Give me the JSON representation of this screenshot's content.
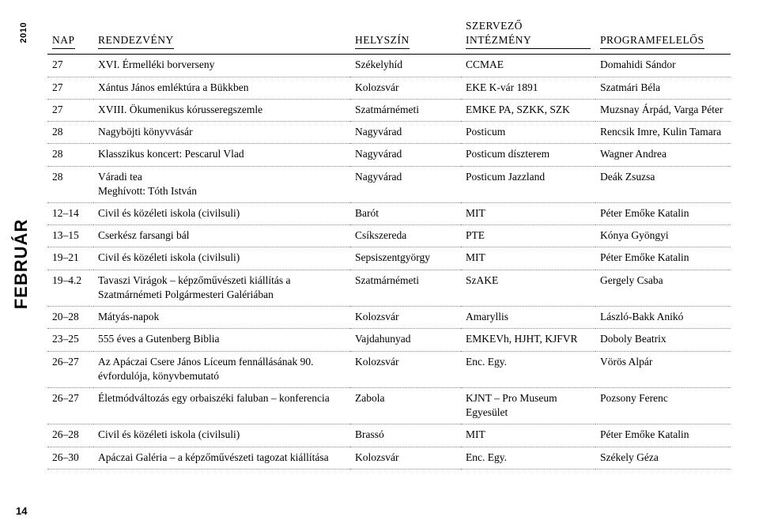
{
  "sidebar": {
    "month": "FEBRUÁR",
    "year": "2010"
  },
  "page_number": "14",
  "table": {
    "headers": {
      "nap": "NAP",
      "rendezveny": "RENDEZVÉNY",
      "helyszin": "HELYSZÍN",
      "szervezo": "SZERVEZŐ INTÉZMÉNY",
      "program": "PROGRAMFELELŐS"
    },
    "rows": [
      {
        "nap": "27",
        "rend": "XVI. Érmelléki borverseny",
        "hely": "Székelyhíd",
        "szerv": "CCMAE",
        "prog": "Domahidi Sándor"
      },
      {
        "nap": "27",
        "rend": "Xántus János emléktúra a Bükkben",
        "hely": "Kolozsvár",
        "szerv": "EKE K-vár 1891",
        "prog": "Szatmári Béla"
      },
      {
        "nap": "27",
        "rend": "XVIII. Ökumenikus kórusseregszemle",
        "hely": "Szatmárnémeti",
        "szerv": "EMKE PA, SZKK, SZK",
        "prog": "Muzsnay Árpád, Varga Péter"
      },
      {
        "nap": "28",
        "rend": "Nagyböjti könyvvásár",
        "hely": "Nagyvárad",
        "szerv": "Posticum",
        "prog": "Rencsik Imre, Kulin Tamara"
      },
      {
        "nap": "28",
        "rend": "Klasszikus koncert: Pescarul Vlad",
        "hely": "Nagyvárad",
        "szerv": "Posticum díszterem",
        "prog": "Wagner Andrea"
      },
      {
        "nap": "28",
        "rend": "Váradi tea\nMeghívott: Tóth István",
        "hely": "Nagyvárad",
        "szerv": "Posticum Jazzland",
        "prog": "Deák Zsuzsa"
      },
      {
        "nap": "12–14",
        "rend": "Civil és közéleti iskola (civilsuli)",
        "hely": "Barót",
        "szerv": "MIT",
        "prog": "Péter Emőke Katalin"
      },
      {
        "nap": "13–15",
        "rend": "Cserkész farsangi bál",
        "hely": "Csíkszereda",
        "szerv": "PTE",
        "prog": "Kónya Gyöngyi"
      },
      {
        "nap": "19–21",
        "rend": "Civil és közéleti iskola (civilsuli)",
        "hely": "Sepsiszentgyörgy",
        "szerv": "MIT",
        "prog": "Péter Emőke Katalin"
      },
      {
        "nap": "19–4.2",
        "rend": "Tavaszi Virágok – képzőművészeti kiállítás a Szatmárnémeti Polgármesteri Galériában",
        "hely": "Szatmárnémeti",
        "szerv": "SzAKE",
        "prog": "Gergely Csaba"
      },
      {
        "nap": "20–28",
        "rend": "Mátyás-napok",
        "hely": "Kolozsvár",
        "szerv": "Amaryllis",
        "prog": "László-Bakk Anikó"
      },
      {
        "nap": "23–25",
        "rend": "555 éves a Gutenberg Biblia",
        "hely": "Vajdahunyad",
        "szerv": "EMKEVh, HJHT, KJFVR",
        "prog": "Doboly Beatrix"
      },
      {
        "nap": "26–27",
        "rend": "Az Apáczai Csere János Líceum fennállásának 90. évfordulója, könyvbemutató",
        "hely": "Kolozsvár",
        "szerv": "Enc. Egy.",
        "prog": "Vörös Alpár"
      },
      {
        "nap": "26–27",
        "rend": "Életmódváltozás egy orbaiszéki faluban – konferencia",
        "hely": "Zabola",
        "szerv": "KJNT – Pro Museum Egyesület",
        "prog": "Pozsony Ferenc"
      },
      {
        "nap": "26–28",
        "rend": "Civil és közéleti iskola (civilsuli)",
        "hely": "Brassó",
        "szerv": "MIT",
        "prog": "Péter Emőke Katalin"
      },
      {
        "nap": "26–30",
        "rend": "Apáczai Galéria – a képzőművészeti tagozat kiállítása",
        "hely": "Kolozsvár",
        "szerv": "Enc. Egy.",
        "prog": "Székely Géza"
      }
    ]
  }
}
